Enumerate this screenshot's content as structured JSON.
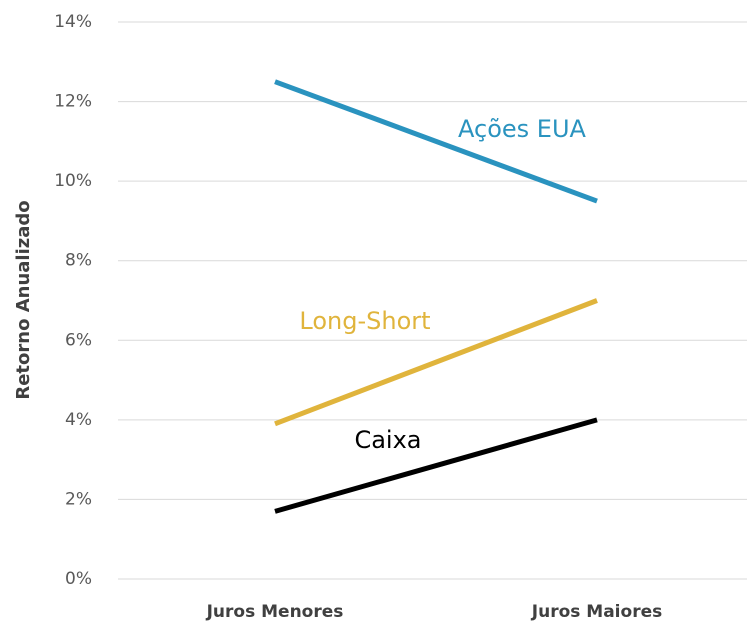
{
  "chart_data": {
    "type": "line",
    "y_label": "Retorno Anualizado",
    "categories": [
      "Juros Menores",
      "Juros Maiores"
    ],
    "series": [
      {
        "name": "Ações EUA",
        "color": "#2a93bf",
        "values": [
          12.5,
          9.5
        ]
      },
      {
        "name": "Long-Short",
        "color": "#e0b43c",
        "values": [
          3.9,
          7.0
        ]
      },
      {
        "name": "Caixa",
        "color": "#000000",
        "values": [
          1.7,
          4.0
        ]
      }
    ],
    "ylim": [
      0,
      14
    ],
    "yticks": [
      {
        "value": 0,
        "label": "0%"
      },
      {
        "value": 2,
        "label": "2%"
      },
      {
        "value": 4,
        "label": "4%"
      },
      {
        "value": 6,
        "label": "6%"
      },
      {
        "value": 8,
        "label": "8%"
      },
      {
        "value": 10,
        "label": "10%"
      },
      {
        "value": 12,
        "label": "12%"
      },
      {
        "value": 14,
        "label": "14%"
      }
    ],
    "grid": true
  }
}
